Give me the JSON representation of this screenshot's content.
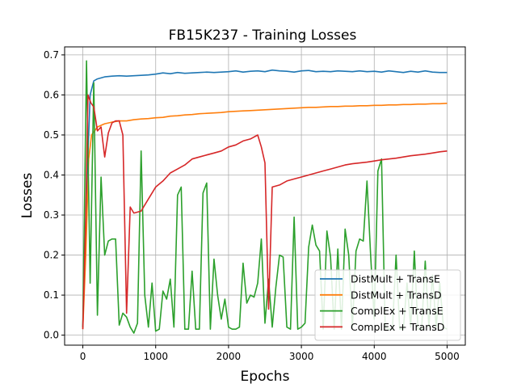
{
  "chart_data": {
    "type": "line",
    "title": "FB15K237 - Training Losses",
    "xlabel": "Epochs",
    "ylabel": "Losses",
    "xlim": [
      -250,
      5250
    ],
    "ylim": [
      -0.025,
      0.72
    ],
    "xticks": [
      0,
      1000,
      2000,
      3000,
      4000,
      5000
    ],
    "yticks": [
      0.0,
      0.1,
      0.2,
      0.3,
      0.4,
      0.5,
      0.6,
      0.7
    ],
    "grid": true,
    "legend_position": "lower-right",
    "series": [
      {
        "name": "DistMult + TransE",
        "color": "#1f77b4",
        "points": [
          [
            0,
            0.02
          ],
          [
            50,
            0.35
          ],
          [
            100,
            0.6
          ],
          [
            150,
            0.635
          ],
          [
            200,
            0.64
          ],
          [
            300,
            0.645
          ],
          [
            400,
            0.647
          ],
          [
            500,
            0.648
          ],
          [
            600,
            0.647
          ],
          [
            700,
            0.648
          ],
          [
            800,
            0.649
          ],
          [
            900,
            0.65
          ],
          [
            1000,
            0.652
          ],
          [
            1100,
            0.655
          ],
          [
            1200,
            0.653
          ],
          [
            1300,
            0.656
          ],
          [
            1400,
            0.654
          ],
          [
            1500,
            0.655
          ],
          [
            1600,
            0.656
          ],
          [
            1700,
            0.657
          ],
          [
            1800,
            0.656
          ],
          [
            1900,
            0.657
          ],
          [
            2000,
            0.658
          ],
          [
            2100,
            0.66
          ],
          [
            2200,
            0.657
          ],
          [
            2300,
            0.659
          ],
          [
            2400,
            0.66
          ],
          [
            2500,
            0.658
          ],
          [
            2600,
            0.662
          ],
          [
            2700,
            0.66
          ],
          [
            2800,
            0.659
          ],
          [
            2900,
            0.657
          ],
          [
            3000,
            0.66
          ],
          [
            3100,
            0.661
          ],
          [
            3200,
            0.658
          ],
          [
            3300,
            0.659
          ],
          [
            3400,
            0.658
          ],
          [
            3500,
            0.66
          ],
          [
            3600,
            0.659
          ],
          [
            3700,
            0.658
          ],
          [
            3800,
            0.66
          ],
          [
            3900,
            0.658
          ],
          [
            4000,
            0.659
          ],
          [
            4100,
            0.657
          ],
          [
            4200,
            0.66
          ],
          [
            4300,
            0.658
          ],
          [
            4400,
            0.656
          ],
          [
            4500,
            0.659
          ],
          [
            4600,
            0.657
          ],
          [
            4700,
            0.66
          ],
          [
            4800,
            0.657
          ],
          [
            4900,
            0.656
          ],
          [
            5000,
            0.656
          ]
        ]
      },
      {
        "name": "DistMult + TransD",
        "color": "#ff7f0e",
        "points": [
          [
            0,
            0.015
          ],
          [
            40,
            0.2
          ],
          [
            80,
            0.44
          ],
          [
            120,
            0.5
          ],
          [
            200,
            0.52
          ],
          [
            300,
            0.528
          ],
          [
            400,
            0.532
          ],
          [
            500,
            0.535
          ],
          [
            600,
            0.535
          ],
          [
            700,
            0.538
          ],
          [
            800,
            0.54
          ],
          [
            900,
            0.541
          ],
          [
            1000,
            0.543
          ],
          [
            1100,
            0.544
          ],
          [
            1200,
            0.547
          ],
          [
            1300,
            0.548
          ],
          [
            1400,
            0.55
          ],
          [
            1500,
            0.551
          ],
          [
            1600,
            0.553
          ],
          [
            1700,
            0.554
          ],
          [
            1800,
            0.555
          ],
          [
            1900,
            0.556
          ],
          [
            2000,
            0.558
          ],
          [
            2100,
            0.559
          ],
          [
            2200,
            0.56
          ],
          [
            2300,
            0.561
          ],
          [
            2400,
            0.562
          ],
          [
            2500,
            0.563
          ],
          [
            2600,
            0.564
          ],
          [
            2700,
            0.565
          ],
          [
            2800,
            0.566
          ],
          [
            2900,
            0.567
          ],
          [
            3000,
            0.568
          ],
          [
            3100,
            0.569
          ],
          [
            3200,
            0.569
          ],
          [
            3300,
            0.57
          ],
          [
            3400,
            0.571
          ],
          [
            3500,
            0.571
          ],
          [
            3600,
            0.572
          ],
          [
            3700,
            0.572
          ],
          [
            3800,
            0.573
          ],
          [
            3900,
            0.573
          ],
          [
            4000,
            0.574
          ],
          [
            4100,
            0.574
          ],
          [
            4200,
            0.575
          ],
          [
            4300,
            0.575
          ],
          [
            4400,
            0.576
          ],
          [
            4500,
            0.576
          ],
          [
            4600,
            0.577
          ],
          [
            4700,
            0.577
          ],
          [
            4800,
            0.578
          ],
          [
            4900,
            0.578
          ],
          [
            5000,
            0.579
          ]
        ]
      },
      {
        "name": "ComplEx + TransE",
        "color": "#2ca02c",
        "points": [
          [
            0,
            0.02
          ],
          [
            50,
            0.685
          ],
          [
            100,
            0.13
          ],
          [
            150,
            0.63
          ],
          [
            200,
            0.05
          ],
          [
            250,
            0.395
          ],
          [
            300,
            0.2
          ],
          [
            350,
            0.235
          ],
          [
            400,
            0.24
          ],
          [
            450,
            0.24
          ],
          [
            500,
            0.025
          ],
          [
            550,
            0.055
          ],
          [
            600,
            0.045
          ],
          [
            650,
            0.02
          ],
          [
            700,
            0.005
          ],
          [
            750,
            0.03
          ],
          [
            800,
            0.46
          ],
          [
            850,
            0.1
          ],
          [
            900,
            0.02
          ],
          [
            950,
            0.13
          ],
          [
            1000,
            0.01
          ],
          [
            1050,
            0.015
          ],
          [
            1100,
            0.11
          ],
          [
            1150,
            0.09
          ],
          [
            1200,
            0.14
          ],
          [
            1250,
            0.02
          ],
          [
            1300,
            0.35
          ],
          [
            1350,
            0.37
          ],
          [
            1400,
            0.015
          ],
          [
            1450,
            0.015
          ],
          [
            1500,
            0.16
          ],
          [
            1550,
            0.015
          ],
          [
            1600,
            0.015
          ],
          [
            1650,
            0.355
          ],
          [
            1700,
            0.38
          ],
          [
            1750,
            0.015
          ],
          [
            1800,
            0.19
          ],
          [
            1850,
            0.1
          ],
          [
            1900,
            0.04
          ],
          [
            1950,
            0.09
          ],
          [
            2000,
            0.02
          ],
          [
            2050,
            0.015
          ],
          [
            2100,
            0.015
          ],
          [
            2150,
            0.02
          ],
          [
            2200,
            0.18
          ],
          [
            2250,
            0.08
          ],
          [
            2300,
            0.1
          ],
          [
            2350,
            0.095
          ],
          [
            2400,
            0.13
          ],
          [
            2450,
            0.24
          ],
          [
            2500,
            0.03
          ],
          [
            2550,
            0.14
          ],
          [
            2600,
            0.02
          ],
          [
            2650,
            0.12
          ],
          [
            2700,
            0.2
          ],
          [
            2750,
            0.195
          ],
          [
            2800,
            0.02
          ],
          [
            2850,
            0.015
          ],
          [
            2900,
            0.295
          ],
          [
            2950,
            0.015
          ],
          [
            3000,
            0.02
          ],
          [
            3050,
            0.03
          ],
          [
            3100,
            0.22
          ],
          [
            3150,
            0.275
          ],
          [
            3200,
            0.225
          ],
          [
            3250,
            0.21
          ],
          [
            3300,
            0.015
          ],
          [
            3350,
            0.26
          ],
          [
            3400,
            0.195
          ],
          [
            3450,
            0.015
          ],
          [
            3500,
            0.215
          ],
          [
            3550,
            0.015
          ],
          [
            3600,
            0.265
          ],
          [
            3650,
            0.2
          ],
          [
            3700,
            0.02
          ],
          [
            3750,
            0.21
          ],
          [
            3800,
            0.24
          ],
          [
            3850,
            0.235
          ],
          [
            3900,
            0.385
          ],
          [
            3950,
            0.2
          ],
          [
            4000,
            0.04
          ],
          [
            4050,
            0.41
          ],
          [
            4100,
            0.44
          ],
          [
            4150,
            0.02
          ],
          [
            4200,
            0.015
          ],
          [
            4250,
            0.015
          ],
          [
            4300,
            0.2
          ],
          [
            4350,
            0.015
          ],
          [
            4400,
            0.015
          ],
          [
            4450,
            0.13
          ],
          [
            4500,
            0.02
          ],
          [
            4550,
            0.21
          ],
          [
            4600,
            0.015
          ],
          [
            4650,
            0.015
          ],
          [
            4700,
            0.185
          ],
          [
            4750,
            0.02
          ],
          [
            4800,
            0.15
          ],
          [
            4850,
            0.02
          ],
          [
            4900,
            0.13
          ],
          [
            4950,
            0.02
          ],
          [
            5000,
            0.015
          ]
        ]
      },
      {
        "name": "ComplEx + TransD",
        "color": "#d62728",
        "points": [
          [
            0,
            0.015
          ],
          [
            40,
            0.3
          ],
          [
            70,
            0.6
          ],
          [
            110,
            0.58
          ],
          [
            150,
            0.57
          ],
          [
            200,
            0.51
          ],
          [
            250,
            0.52
          ],
          [
            300,
            0.445
          ],
          [
            350,
            0.505
          ],
          [
            400,
            0.53
          ],
          [
            450,
            0.535
          ],
          [
            500,
            0.535
          ],
          [
            550,
            0.5
          ],
          [
            600,
            0.055
          ],
          [
            650,
            0.32
          ],
          [
            700,
            0.305
          ],
          [
            800,
            0.31
          ],
          [
            900,
            0.34
          ],
          [
            1000,
            0.37
          ],
          [
            1100,
            0.385
          ],
          [
            1200,
            0.405
          ],
          [
            1300,
            0.415
          ],
          [
            1400,
            0.425
          ],
          [
            1500,
            0.44
          ],
          [
            1600,
            0.445
          ],
          [
            1700,
            0.45
          ],
          [
            1800,
            0.455
          ],
          [
            1900,
            0.46
          ],
          [
            2000,
            0.47
          ],
          [
            2100,
            0.475
          ],
          [
            2200,
            0.485
          ],
          [
            2300,
            0.49
          ],
          [
            2400,
            0.5
          ],
          [
            2450,
            0.47
          ],
          [
            2500,
            0.43
          ],
          [
            2550,
            0.065
          ],
          [
            2600,
            0.37
          ],
          [
            2700,
            0.375
          ],
          [
            2800,
            0.385
          ],
          [
            2900,
            0.39
          ],
          [
            3000,
            0.395
          ],
          [
            3100,
            0.4
          ],
          [
            3200,
            0.405
          ],
          [
            3300,
            0.41
          ],
          [
            3400,
            0.415
          ],
          [
            3500,
            0.42
          ],
          [
            3600,
            0.425
          ],
          [
            3700,
            0.428
          ],
          [
            3800,
            0.43
          ],
          [
            3900,
            0.432
          ],
          [
            4000,
            0.435
          ],
          [
            4100,
            0.438
          ],
          [
            4200,
            0.44
          ],
          [
            4300,
            0.442
          ],
          [
            4400,
            0.445
          ],
          [
            4500,
            0.448
          ],
          [
            4600,
            0.45
          ],
          [
            4700,
            0.452
          ],
          [
            4800,
            0.455
          ],
          [
            4900,
            0.458
          ],
          [
            5000,
            0.46
          ]
        ]
      }
    ]
  }
}
